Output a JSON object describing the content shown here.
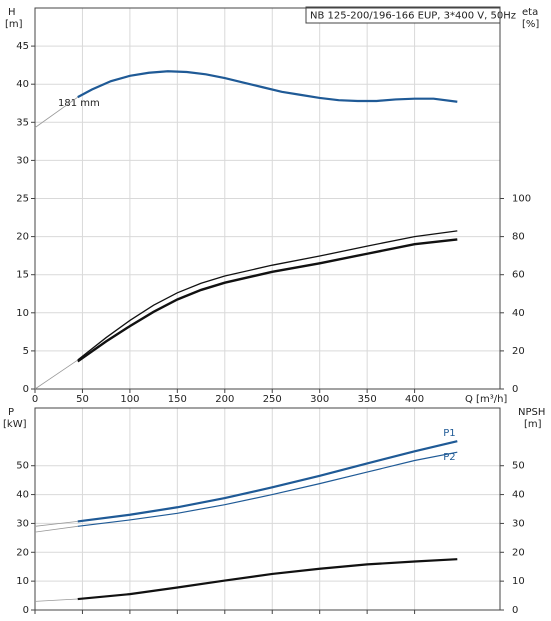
{
  "chart_data": [
    {
      "type": "line",
      "title": "NB 125-200/196-166 EUP, 3*400 V, 50Hz",
      "ylabel": [
        "H",
        "[m]"
      ],
      "y2label": [
        "eta",
        "[%]"
      ],
      "xlabel": "Q [m³/h]",
      "annotation": "181 mm",
      "xlim": [
        0,
        490
      ],
      "xticks": [
        0,
        50,
        100,
        150,
        200,
        250,
        300,
        350,
        400
      ],
      "ylim": [
        0,
        50
      ],
      "yticks": [
        0,
        5,
        10,
        15,
        20,
        25,
        30,
        35,
        40,
        45
      ],
      "y2lim": [
        0,
        200
      ],
      "y2ticks": [
        0,
        20,
        40,
        60,
        80,
        100
      ],
      "grid": true,
      "xtick_labels": true,
      "series": [
        {
          "color": "#1f5a96",
          "width": 2.2,
          "x": [
            45,
            60,
            80,
            100,
            120,
            140,
            160,
            180,
            200,
            220,
            240,
            260,
            280,
            300,
            320,
            340,
            360,
            380,
            400,
            420,
            445
          ],
          "values": [
            38.3,
            39.3,
            40.4,
            41.1,
            41.5,
            41.7,
            41.6,
            41.3,
            40.8,
            40.2,
            39.6,
            39.0,
            38.6,
            38.2,
            37.9,
            37.8,
            37.8,
            38.0,
            38.1,
            38.1,
            37.7
          ]
        },
        {
          "color": "#999999",
          "width": 0.8,
          "x": [
            0,
            45
          ],
          "values": [
            34.3,
            38.3
          ]
        },
        {
          "color": "#111111",
          "width": 1.3,
          "axis": "y2",
          "x": [
            45,
            75,
            100,
            125,
            150,
            175,
            200,
            250,
            300,
            350,
            400,
            445
          ],
          "values": [
            15.2,
            27,
            36,
            44,
            50.5,
            55.5,
            59.3,
            65,
            69.8,
            75,
            80,
            83
          ]
        },
        {
          "color": "#111111",
          "width": 2.4,
          "axis": "y2",
          "x": [
            45,
            75,
            100,
            125,
            150,
            175,
            200,
            250,
            300,
            350,
            400,
            445
          ],
          "values": [
            14.5,
            25,
            33,
            40.5,
            47,
            52,
            55.8,
            61.5,
            66,
            71,
            76,
            78.5
          ]
        },
        {
          "color": "#999999",
          "width": 0.8,
          "axis": "y2",
          "x": [
            0,
            45
          ],
          "values": [
            0,
            15.2
          ]
        }
      ]
    },
    {
      "type": "line",
      "ylabel": [
        "P",
        "[kW]"
      ],
      "y2label": [
        "NPSH",
        "[m]"
      ],
      "xlim": [
        0,
        490
      ],
      "xticks": [
        0,
        50,
        100,
        150,
        200,
        250,
        300,
        350,
        400
      ],
      "ylim": [
        0,
        70
      ],
      "yticks": [
        0,
        10,
        20,
        30,
        40,
        50
      ],
      "y2lim": [
        0,
        70
      ],
      "y2ticks": [
        0,
        10,
        20,
        30,
        40,
        50
      ],
      "grid": true,
      "xtick_labels": false,
      "series": [
        {
          "name": "P1",
          "color": "#1f5a96",
          "width": 2.2,
          "x": [
            45,
            100,
            150,
            200,
            250,
            300,
            350,
            400,
            445
          ],
          "values": [
            30.7,
            33,
            35.6,
            38.8,
            42.5,
            46.5,
            50.8,
            55,
            58.5
          ]
        },
        {
          "color": "#999999",
          "width": 0.8,
          "x": [
            0,
            45
          ],
          "values": [
            29,
            30.7
          ]
        },
        {
          "name": "P2",
          "color": "#1f5a96",
          "width": 1.2,
          "x": [
            45,
            100,
            150,
            200,
            250,
            300,
            350,
            400,
            445
          ],
          "values": [
            29.0,
            31.2,
            33.5,
            36.5,
            40,
            43.8,
            47.8,
            51.8,
            54.7
          ]
        },
        {
          "color": "#999999",
          "width": 0.8,
          "x": [
            0,
            45
          ],
          "values": [
            27.0,
            29.0
          ]
        },
        {
          "color": "#111111",
          "width": 2.2,
          "axis": "y2",
          "x": [
            45,
            100,
            150,
            200,
            250,
            300,
            350,
            400,
            445
          ],
          "values": [
            3.8,
            5.5,
            7.8,
            10.2,
            12.5,
            14.3,
            15.8,
            16.8,
            17.6
          ]
        },
        {
          "color": "#999999",
          "width": 0.8,
          "axis": "y2",
          "x": [
            0,
            45
          ],
          "values": [
            3,
            3.8
          ]
        }
      ]
    }
  ]
}
